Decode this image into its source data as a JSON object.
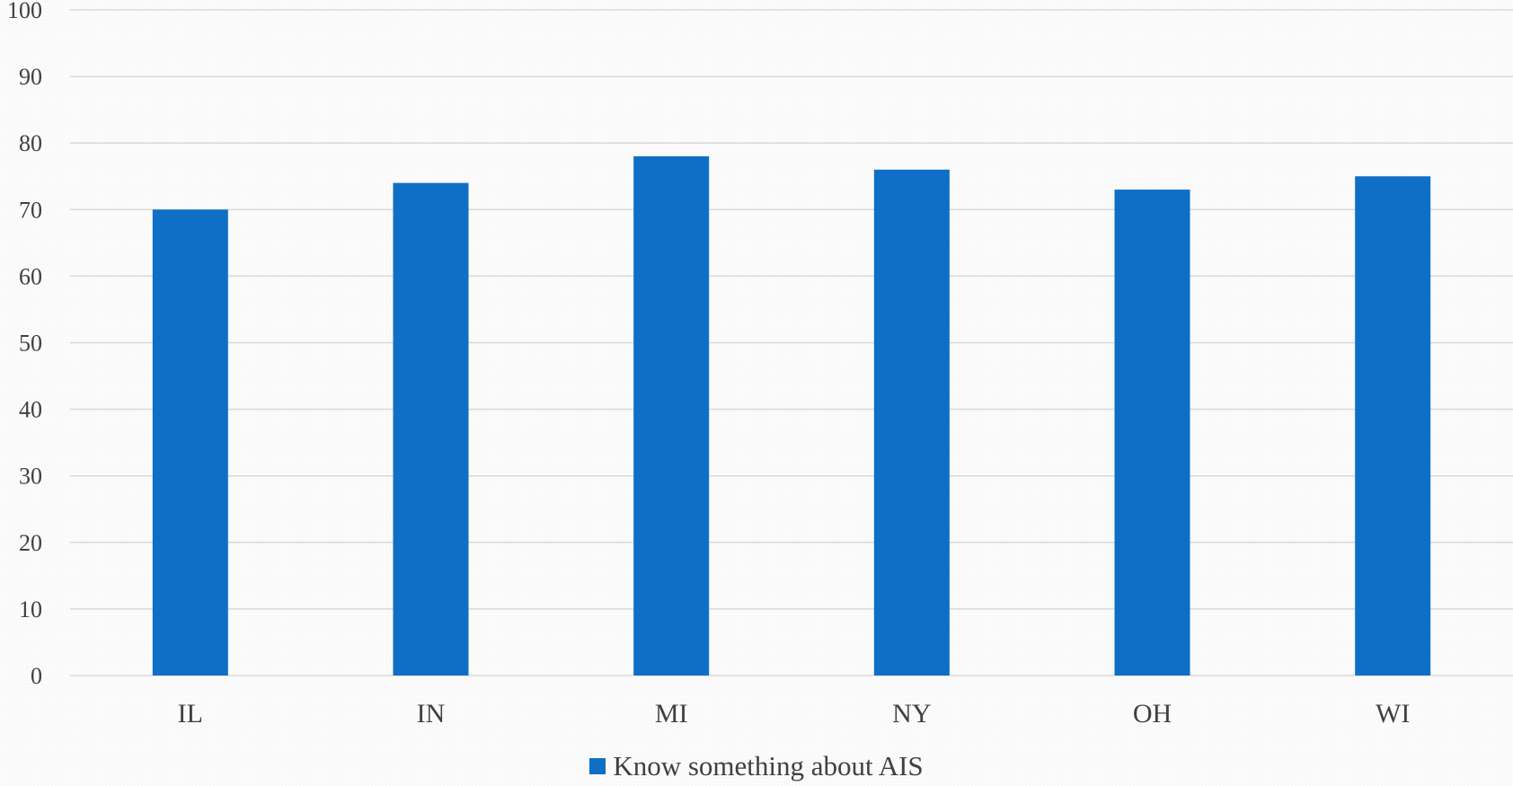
{
  "colors": {
    "bar": "#0f6fc6",
    "grid": "#d9d9d9",
    "text": "#404040"
  },
  "chart_data": {
    "type": "bar",
    "title": "",
    "xlabel": "",
    "ylabel": "",
    "categories": [
      "IL",
      "IN",
      "MI",
      "NY",
      "OH",
      "WI"
    ],
    "series": [
      {
        "name": "Know something about AIS",
        "values": [
          70,
          74,
          78,
          76,
          73,
          75
        ]
      }
    ],
    "ylim": [
      0,
      100
    ],
    "yticks": [
      0,
      10,
      20,
      30,
      40,
      50,
      60,
      70,
      80,
      90,
      100
    ],
    "grid": true,
    "legend": "bottom"
  }
}
